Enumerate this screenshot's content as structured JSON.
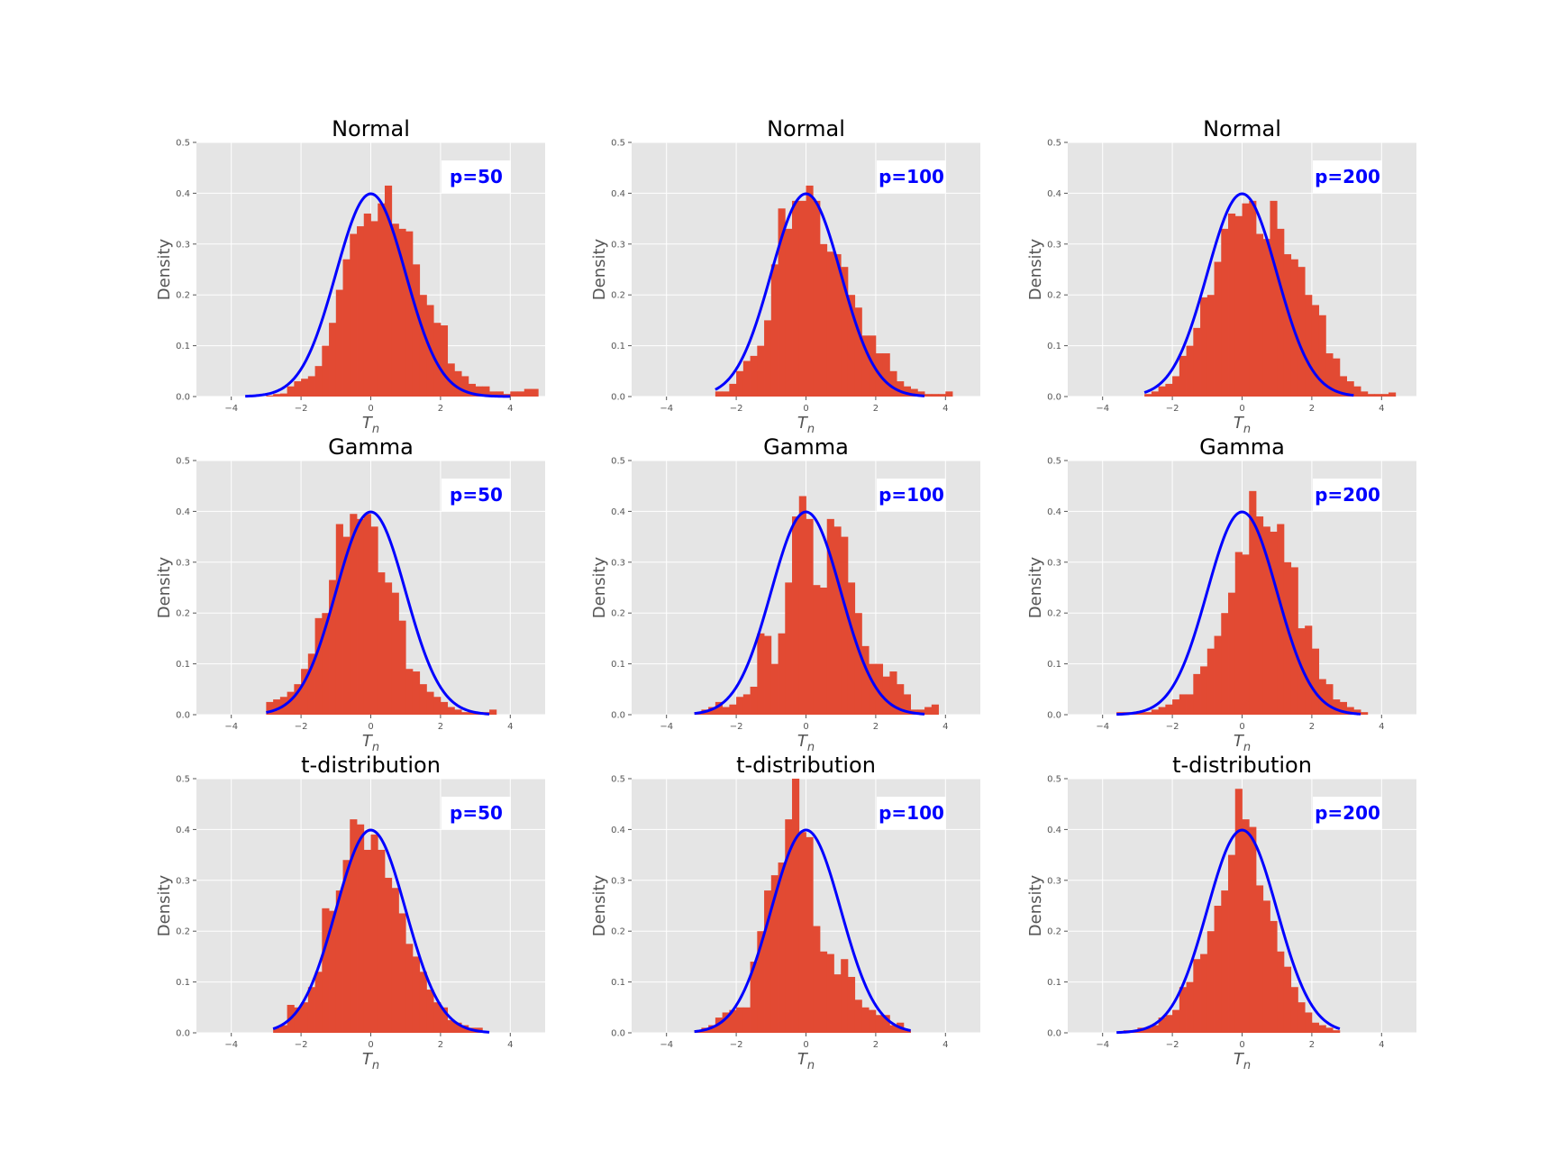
{
  "colors": {
    "panel_bg": "#e5e5e5",
    "grid": "#ffffff",
    "bars": "#e24a33",
    "curve": "#0000ff",
    "label_text": "#0000ff"
  },
  "chart_data": [
    {
      "type": "bar",
      "title": "Normal",
      "annotation": "p=50",
      "xlabel": "T",
      "xlabel_sub": "n",
      "ylabel": "Density",
      "xlim": [
        -5,
        5
      ],
      "ylim": [
        0,
        0.5
      ],
      "xticks": [
        -4,
        -2,
        0,
        2,
        4
      ],
      "xtick_labels": [
        "−4",
        "−2",
        "0",
        "2",
        "4"
      ],
      "yticks": [
        0,
        0.1,
        0.2,
        0.3,
        0.4,
        0.5
      ],
      "ytick_labels": [
        "0.0",
        "0.1",
        "0.2",
        "0.3",
        "0.4",
        "0.5"
      ],
      "bin_start": -3.4,
      "bin_width": 0.2,
      "values": [
        0.002,
        0,
        0.002,
        0.005,
        0.006,
        0.02,
        0.03,
        0.035,
        0.04,
        0.06,
        0.1,
        0.145,
        0.21,
        0.27,
        0.32,
        0.335,
        0.36,
        0.345,
        0.38,
        0.415,
        0.34,
        0.33,
        0.325,
        0.26,
        0.2,
        0.18,
        0.145,
        0.14,
        0.065,
        0.05,
        0.04,
        0.025,
        0.02,
        0.02,
        0.01,
        0.01,
        0.005,
        0.01,
        0.01,
        0.015,
        0.015
      ],
      "curve_domain": [
        -3.6,
        4.0
      ]
    },
    {
      "type": "bar",
      "title": "Normal",
      "annotation": "p=100",
      "xlabel": "T",
      "xlabel_sub": "n",
      "ylabel": "Density",
      "xlim": [
        -5,
        5
      ],
      "ylim": [
        0,
        0.5
      ],
      "xticks": [
        -4,
        -2,
        0,
        2,
        4
      ],
      "xtick_labels": [
        "−4",
        "−2",
        "0",
        "2",
        "4"
      ],
      "yticks": [
        0,
        0.1,
        0.2,
        0.3,
        0.4,
        0.5
      ],
      "ytick_labels": [
        "0.0",
        "0.1",
        "0.2",
        "0.3",
        "0.4",
        "0.5"
      ],
      "bin_start": -2.6,
      "bin_width": 0.2,
      "values": [
        0.01,
        0.01,
        0.025,
        0.05,
        0.07,
        0.08,
        0.1,
        0.15,
        0.26,
        0.37,
        0.33,
        0.385,
        0.385,
        0.415,
        0.385,
        0.3,
        0.285,
        0.28,
        0.255,
        0.2,
        0.175,
        0.12,
        0.12,
        0.085,
        0.085,
        0.05,
        0.03,
        0.02,
        0.015,
        0.01,
        0.005,
        0.005,
        0.005,
        0.01
      ],
      "curve_domain": [
        -2.6,
        3.4
      ]
    },
    {
      "type": "bar",
      "title": "Normal",
      "annotation": "p=200",
      "xlabel": "T",
      "xlabel_sub": "n",
      "ylabel": "Density",
      "xlim": [
        -5,
        5
      ],
      "ylim": [
        0,
        0.5
      ],
      "xticks": [
        -4,
        -2,
        0,
        2,
        4
      ],
      "xtick_labels": [
        "−4",
        "−2",
        "0",
        "2",
        "4"
      ],
      "yticks": [
        0,
        0.1,
        0.2,
        0.3,
        0.4,
        0.5
      ],
      "ytick_labels": [
        "0.0",
        "0.1",
        "0.2",
        "0.3",
        "0.4",
        "0.5"
      ],
      "bin_start": -2.8,
      "bin_width": 0.2,
      "values": [
        0.005,
        0.01,
        0.02,
        0.025,
        0.04,
        0.08,
        0.1,
        0.135,
        0.195,
        0.2,
        0.265,
        0.33,
        0.36,
        0.355,
        0.38,
        0.385,
        0.32,
        0.31,
        0.385,
        0.33,
        0.28,
        0.27,
        0.255,
        0.2,
        0.18,
        0.16,
        0.085,
        0.075,
        0.04,
        0.03,
        0.02,
        0.01,
        0.005,
        0.005,
        0.005,
        0.008
      ],
      "curve_domain": [
        -2.8,
        3.2
      ]
    },
    {
      "type": "bar",
      "title": "Gamma",
      "annotation": "p=50",
      "xlabel": "T",
      "xlabel_sub": "n",
      "ylabel": "Density",
      "xlim": [
        -5,
        5
      ],
      "ylim": [
        0,
        0.5
      ],
      "xticks": [
        -4,
        -2,
        0,
        2,
        4
      ],
      "xtick_labels": [
        "−4",
        "−2",
        "0",
        "2",
        "4"
      ],
      "yticks": [
        0,
        0.1,
        0.2,
        0.3,
        0.4,
        0.5
      ],
      "ytick_labels": [
        "0.0",
        "0.1",
        "0.2",
        "0.3",
        "0.4",
        "0.5"
      ],
      "bin_start": -3.0,
      "bin_width": 0.2,
      "values": [
        0.025,
        0.03,
        0.035,
        0.045,
        0.06,
        0.09,
        0.12,
        0.19,
        0.2,
        0.265,
        0.375,
        0.35,
        0.395,
        0.385,
        0.395,
        0.37,
        0.28,
        0.26,
        0.24,
        0.185,
        0.09,
        0.085,
        0.06,
        0.045,
        0.035,
        0.025,
        0.015,
        0.01,
        0.005,
        0.005,
        0.005,
        0.005,
        0.01
      ],
      "curve_domain": [
        -3.0,
        3.4
      ]
    },
    {
      "type": "bar",
      "title": "Gamma",
      "annotation": "p=100",
      "xlabel": "T",
      "xlabel_sub": "n",
      "ylabel": "Density",
      "xlim": [
        -5,
        5
      ],
      "ylim": [
        0,
        0.5
      ],
      "xticks": [
        -4,
        -2,
        0,
        2,
        4
      ],
      "xtick_labels": [
        "−4",
        "−2",
        "0",
        "2",
        "4"
      ],
      "yticks": [
        0,
        0.1,
        0.2,
        0.3,
        0.4,
        0.5
      ],
      "ytick_labels": [
        "0.0",
        "0.1",
        "0.2",
        "0.3",
        "0.4",
        "0.5"
      ],
      "bin_start": -3.2,
      "bin_width": 0.2,
      "values": [
        0.005,
        0.01,
        0.015,
        0.025,
        0.015,
        0.02,
        0.035,
        0.04,
        0.055,
        0.16,
        0.155,
        0.1,
        0.16,
        0.26,
        0.39,
        0.43,
        0.385,
        0.255,
        0.25,
        0.385,
        0.37,
        0.35,
        0.26,
        0.2,
        0.135,
        0.1,
        0.1,
        0.075,
        0.085,
        0.06,
        0.04,
        0.01,
        0.01,
        0.015,
        0.02
      ],
      "curve_domain": [
        -3.2,
        3.4
      ]
    },
    {
      "type": "bar",
      "title": "Gamma",
      "annotation": "p=200",
      "xlabel": "T",
      "xlabel_sub": "n",
      "ylabel": "Density",
      "xlim": [
        -5,
        5
      ],
      "ylim": [
        0,
        0.5
      ],
      "xticks": [
        -4,
        -2,
        0,
        2,
        4
      ],
      "xtick_labels": [
        "−4",
        "−2",
        "0",
        "2",
        "4"
      ],
      "yticks": [
        0,
        0.1,
        0.2,
        0.3,
        0.4,
        0.5
      ],
      "ytick_labels": [
        "0.0",
        "0.1",
        "0.2",
        "0.3",
        "0.4",
        "0.5"
      ],
      "bin_start": -3.6,
      "bin_width": 0.2,
      "values": [
        0.005,
        0.005,
        0.005,
        0.005,
        0.005,
        0.01,
        0.015,
        0.02,
        0.03,
        0.04,
        0.04,
        0.08,
        0.095,
        0.13,
        0.155,
        0.2,
        0.24,
        0.32,
        0.315,
        0.44,
        0.39,
        0.37,
        0.36,
        0.375,
        0.3,
        0.29,
        0.17,
        0.175,
        0.13,
        0.07,
        0.06,
        0.03,
        0.025,
        0.015,
        0.01,
        0.005
      ],
      "curve_domain": [
        -3.6,
        3.4
      ]
    },
    {
      "type": "bar",
      "title": "t-distribution",
      "annotation": "p=50",
      "xlabel": "T",
      "xlabel_sub": "n",
      "ylabel": "Density",
      "xlim": [
        -5,
        5
      ],
      "ylim": [
        0,
        0.5
      ],
      "xticks": [
        -4,
        -2,
        0,
        2,
        4
      ],
      "xtick_labels": [
        "−4",
        "−2",
        "0",
        "2",
        "4"
      ],
      "yticks": [
        0,
        0.1,
        0.2,
        0.3,
        0.4,
        0.5
      ],
      "ytick_labels": [
        "0.0",
        "0.1",
        "0.2",
        "0.3",
        "0.4",
        "0.5"
      ],
      "bin_start": -2.8,
      "bin_width": 0.2,
      "values": [
        0.01,
        0.015,
        0.055,
        0.05,
        0.06,
        0.09,
        0.12,
        0.245,
        0.24,
        0.28,
        0.34,
        0.42,
        0.41,
        0.36,
        0.39,
        0.36,
        0.305,
        0.285,
        0.235,
        0.175,
        0.15,
        0.12,
        0.085,
        0.06,
        0.05,
        0.025,
        0.02,
        0.015,
        0.01,
        0.01
      ],
      "curve_domain": [
        -2.8,
        3.4
      ]
    },
    {
      "type": "bar",
      "title": "t-distribution",
      "annotation": "p=100",
      "xlabel": "T",
      "xlabel_sub": "n",
      "ylabel": "Density",
      "xlim": [
        -5,
        5
      ],
      "ylim": [
        0,
        0.5
      ],
      "xticks": [
        -4,
        -2,
        0,
        2,
        4
      ],
      "xtick_labels": [
        "−4",
        "−2",
        "0",
        "2",
        "4"
      ],
      "yticks": [
        0,
        0.1,
        0.2,
        0.3,
        0.4,
        0.5
      ],
      "ytick_labels": [
        "0.0",
        "0.1",
        "0.2",
        "0.3",
        "0.4",
        "0.5"
      ],
      "bin_start": -3.2,
      "bin_width": 0.2,
      "values": [
        0.005,
        0.01,
        0.015,
        0.03,
        0.04,
        0.045,
        0.05,
        0.05,
        0.14,
        0.2,
        0.28,
        0.31,
        0.335,
        0.42,
        0.5,
        0.395,
        0.385,
        0.21,
        0.16,
        0.155,
        0.115,
        0.145,
        0.11,
        0.065,
        0.05,
        0.045,
        0.035,
        0.035,
        0.015,
        0.02,
        0.005
      ],
      "curve_domain": [
        -3.2,
        3.0
      ]
    },
    {
      "type": "bar",
      "title": "t-distribution",
      "annotation": "p=200",
      "xlabel": "T",
      "xlabel_sub": "n",
      "ylabel": "Density",
      "xlim": [
        -5,
        5
      ],
      "ylim": [
        0,
        0.5
      ],
      "xticks": [
        -4,
        -2,
        0,
        2,
        4
      ],
      "xtick_labels": [
        "−4",
        "−2",
        "0",
        "2",
        "4"
      ],
      "yticks": [
        0,
        0.1,
        0.2,
        0.3,
        0.4,
        0.5
      ],
      "ytick_labels": [
        "0.0",
        "0.1",
        "0.2",
        "0.3",
        "0.4",
        "0.5"
      ],
      "bin_start": -3.4,
      "bin_width": 0.2,
      "values": [
        0.005,
        0.005,
        0.01,
        0.01,
        0.015,
        0.03,
        0.035,
        0.045,
        0.09,
        0.1,
        0.145,
        0.155,
        0.2,
        0.25,
        0.28,
        0.35,
        0.48,
        0.42,
        0.405,
        0.29,
        0.26,
        0.22,
        0.16,
        0.13,
        0.09,
        0.06,
        0.04,
        0.02,
        0.015,
        0.01,
        0.005
      ],
      "curve_domain": [
        -3.6,
        2.8
      ]
    }
  ]
}
